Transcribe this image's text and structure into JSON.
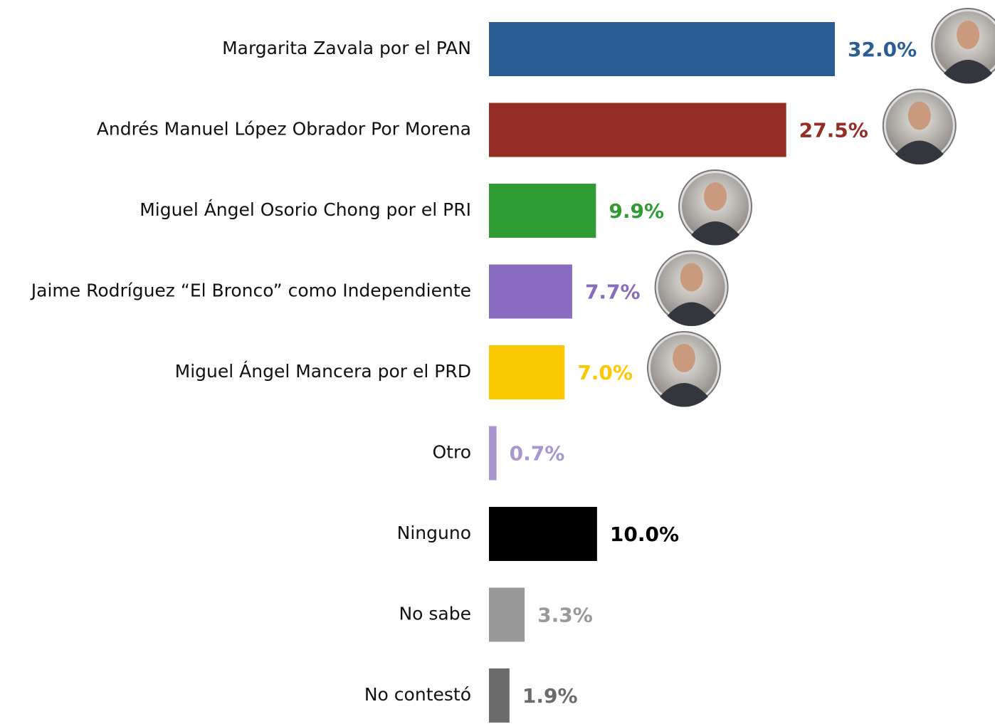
{
  "chart_data": {
    "type": "bar",
    "orientation": "horizontal",
    "categories": [
      "Margarita Zavala por el PAN",
      "Andrés Manuel López Obrador Por Morena",
      "Miguel Ángel Osorio Chong por el PRI",
      "Jaime Rodríguez “El Bronco” como Independiente",
      "Miguel Ángel Mancera por el PRD",
      "Otro",
      "Ninguno",
      "No sabe",
      "No contestó"
    ],
    "values": [
      32.0,
      27.5,
      9.9,
      7.7,
      7.0,
      0.7,
      10.0,
      3.3,
      1.9
    ],
    "value_labels": [
      "32.0%",
      "27.5%",
      "9.9%",
      "7.7%",
      "7.0%",
      "0.7%",
      "10.0%",
      "3.3%",
      "1.9%"
    ],
    "colors": [
      "#2a5d93",
      "#952c26",
      "#2f9c33",
      "#876cc0",
      "#fcc800",
      "#a995d0",
      "#000000",
      "#999999",
      "#6b6b6b"
    ]
  }
}
